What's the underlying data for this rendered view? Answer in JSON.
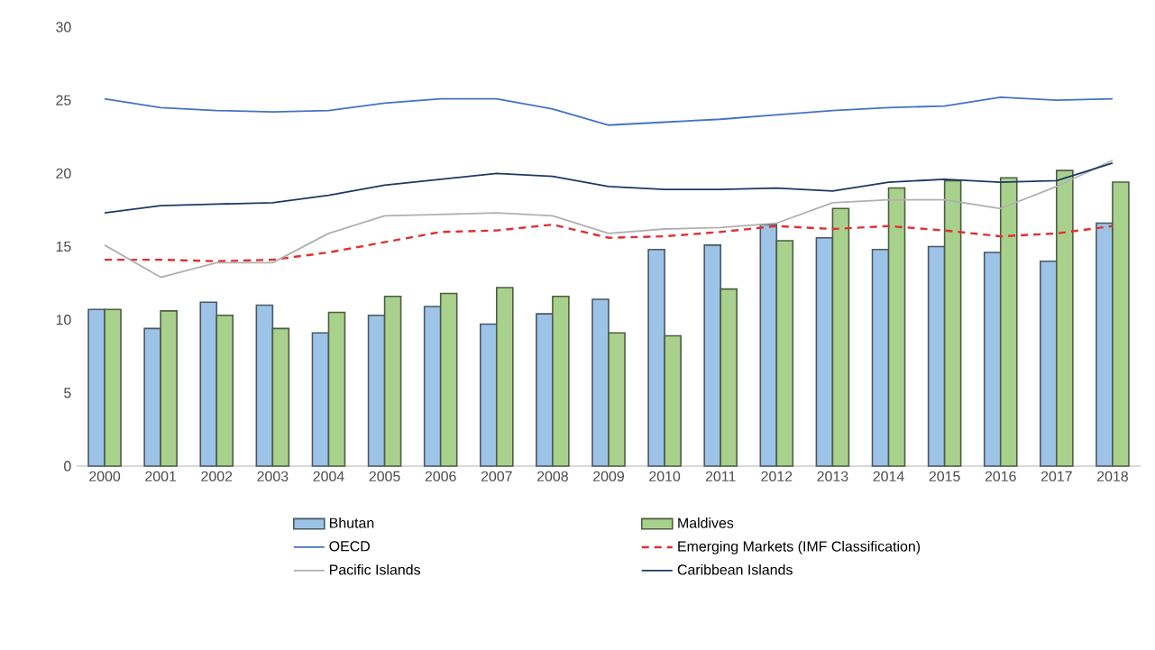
{
  "chart_data": {
    "type": "bar",
    "categories": [
      "2000",
      "2001",
      "2002",
      "2003",
      "2004",
      "2005",
      "2006",
      "2007",
      "2008",
      "2009",
      "2010",
      "2011",
      "2012",
      "2013",
      "2014",
      "2015",
      "2016",
      "2017",
      "2018"
    ],
    "series": [
      {
        "name": "Bhutan",
        "color": "#9dc3e6",
        "values": [
          10.7,
          9.4,
          11.2,
          11.0,
          9.1,
          10.3,
          10.9,
          9.7,
          10.4,
          11.4,
          14.8,
          15.1,
          16.5,
          15.6,
          14.8,
          15.0,
          14.6,
          14.0,
          16.6
        ]
      },
      {
        "name": "Maldives",
        "color": "#a9d18e",
        "values": [
          10.7,
          10.6,
          10.3,
          9.4,
          10.5,
          11.6,
          11.8,
          12.2,
          11.6,
          9.1,
          8.9,
          12.1,
          15.4,
          17.6,
          19.0,
          19.5,
          19.7,
          20.2,
          19.4
        ]
      },
      {
        "name": "OECD",
        "type": "line",
        "color": "#4472c4",
        "line_style": "solid",
        "values": [
          25.1,
          24.5,
          24.3,
          24.2,
          24.3,
          24.8,
          25.1,
          25.1,
          24.4,
          23.3,
          23.5,
          23.7,
          24.0,
          24.3,
          24.5,
          24.6,
          25.2,
          25.0,
          25.1
        ]
      },
      {
        "name": "Emerging Markets (IMF Classification)",
        "type": "line",
        "color": "#e03030",
        "line_style": "dashed",
        "values": [
          14.1,
          14.1,
          14.0,
          14.1,
          14.6,
          15.3,
          16.0,
          16.1,
          16.5,
          15.6,
          15.7,
          16.0,
          16.4,
          16.2,
          16.4,
          16.1,
          15.7,
          15.9,
          16.4
        ]
      },
      {
        "name": "Pacific Islands",
        "type": "line",
        "color": "#b0b0b0",
        "line_style": "solid",
        "values": [
          15.1,
          12.9,
          13.9,
          13.9,
          15.9,
          17.1,
          17.2,
          17.3,
          17.1,
          15.9,
          16.2,
          16.3,
          16.6,
          18.0,
          18.2,
          18.2,
          17.6,
          19.1,
          20.9
        ]
      },
      {
        "name": "Caribbean Islands",
        "type": "line",
        "color": "#1f3864",
        "line_style": "solid",
        "values": [
          17.3,
          17.8,
          17.9,
          18.0,
          18.5,
          19.2,
          19.6,
          20.0,
          19.8,
          19.1,
          18.9,
          18.9,
          19.0,
          18.8,
          19.4,
          19.6,
          19.4,
          19.5,
          20.7
        ]
      }
    ],
    "ylim": [
      0,
      30
    ],
    "yticks": [
      0,
      5,
      10,
      15,
      20,
      25,
      30
    ],
    "legend": "bottom"
  }
}
